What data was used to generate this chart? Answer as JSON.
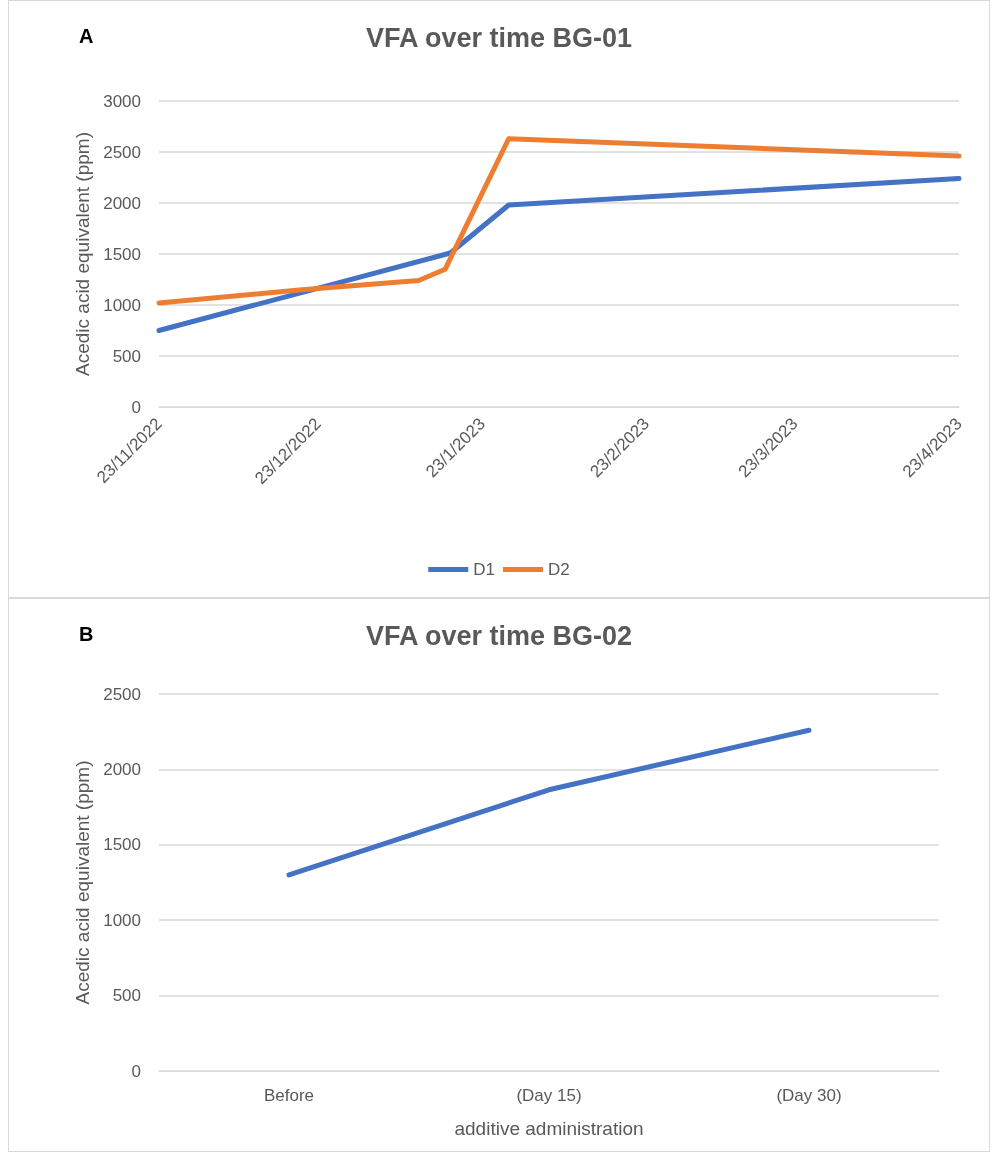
{
  "chart_data": [
    {
      "type": "line",
      "title": "VFA over time BG-01",
      "ylabel": "Acedic acid equivalent (ppm)",
      "annotations": [
        "A"
      ],
      "series": [
        {
          "name": "D1",
          "color": "#4472c4",
          "x": [
            "2022-11-23",
            "2023-01-17",
            "2023-01-28",
            "2023-04-23"
          ],
          "values": [
            750,
            1510,
            1980,
            2240
          ]
        },
        {
          "name": "D2",
          "color": "#ed7d31",
          "x": [
            "2022-11-23",
            "2022-12-20",
            "2023-01-11",
            "2023-01-16",
            "2023-01-28",
            "2023-04-23"
          ],
          "values": [
            1020,
            1150,
            1240,
            1350,
            2630,
            2460
          ]
        }
      ],
      "xlim": [
        "2022-11-23",
        "2023-04-23"
      ],
      "xticks": [
        {
          "value": "2022-11-23",
          "label": "23/11/2022"
        },
        {
          "value": "2022-12-23",
          "label": "23/12/2022"
        },
        {
          "value": "2023-01-23",
          "label": "23/1/2023"
        },
        {
          "value": "2023-02-23",
          "label": "23/2/2023"
        },
        {
          "value": "2023-03-23",
          "label": "23/3/2023"
        },
        {
          "value": "2023-04-23",
          "label": "23/4/2023"
        }
      ],
      "ylim": [
        0,
        3000
      ],
      "yticks": [
        0,
        500,
        1000,
        1500,
        2000,
        2500,
        3000
      ],
      "grid": "y",
      "legend": "bottom",
      "marker": "none",
      "line_style": "solid"
    },
    {
      "type": "line",
      "title": "VFA over time BG-02",
      "ylabel": "Acedic acid equivalent (ppm)",
      "xlabel": "additive administration",
      "annotations": [
        "B"
      ],
      "categories": [
        "Before",
        "(Day 15)",
        "(Day 30)"
      ],
      "series": [
        {
          "color": "#4472c4",
          "values": [
            1300,
            1865,
            2260
          ]
        }
      ],
      "ylim": [
        0,
        2500
      ],
      "yticks": [
        0,
        500,
        1000,
        1500,
        2000,
        2500
      ],
      "grid": "y",
      "legend": false,
      "marker": "none",
      "line_style": "solid"
    }
  ]
}
